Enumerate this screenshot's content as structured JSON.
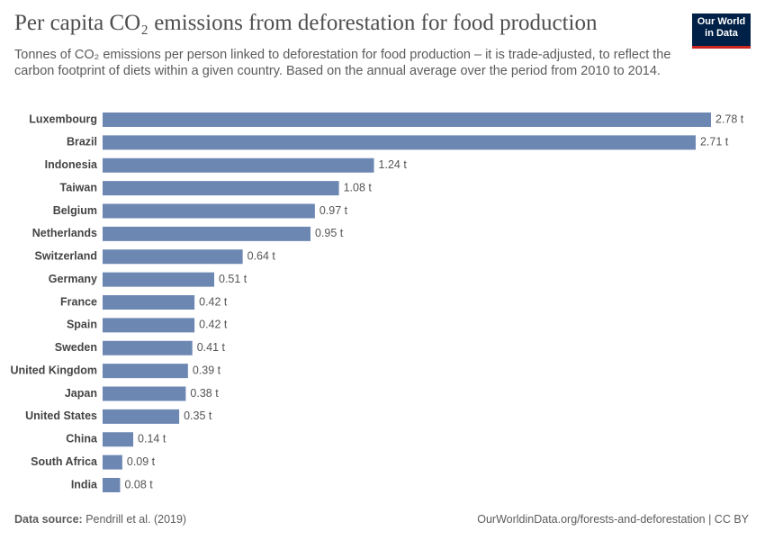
{
  "logo": "Our World in Data",
  "chart_data": {
    "type": "bar",
    "orientation": "horizontal",
    "title": "Per capita CO₂ emissions from deforestation for food production",
    "subtitle": "Tonnes of CO₂ emissions per person linked to deforestation for food production – it is trade-adjusted, to reflect the carbon footprint of diets within a given country. Based on the annual average over the period from 2010 to 2014.",
    "categories": [
      "Luxembourg",
      "Brazil",
      "Indonesia",
      "Taiwan",
      "Belgium",
      "Netherlands",
      "Switzerland",
      "Germany",
      "France",
      "Spain",
      "Sweden",
      "United Kingdom",
      "Japan",
      "United States",
      "China",
      "South Africa",
      "India"
    ],
    "values": [
      2.78,
      2.71,
      1.24,
      1.08,
      0.97,
      0.95,
      0.64,
      0.51,
      0.42,
      0.42,
      0.41,
      0.39,
      0.38,
      0.35,
      0.14,
      0.09,
      0.08
    ],
    "value_labels": [
      "2.78 t",
      "2.71 t",
      "1.24 t",
      "1.08 t",
      "0.97 t",
      "0.95 t",
      "0.64 t",
      "0.51 t",
      "0.42 t",
      "0.42 t",
      "0.41 t",
      "0.39 t",
      "0.38 t",
      "0.35 t",
      "0.14 t",
      "0.09 t",
      "0.08 t"
    ],
    "color": "#6d87b3",
    "source_label": "Data source:",
    "source": "Pendrill et al. (2019)",
    "footer_right": "OurWorldinData.org/forests-and-deforestation | CC BY"
  }
}
